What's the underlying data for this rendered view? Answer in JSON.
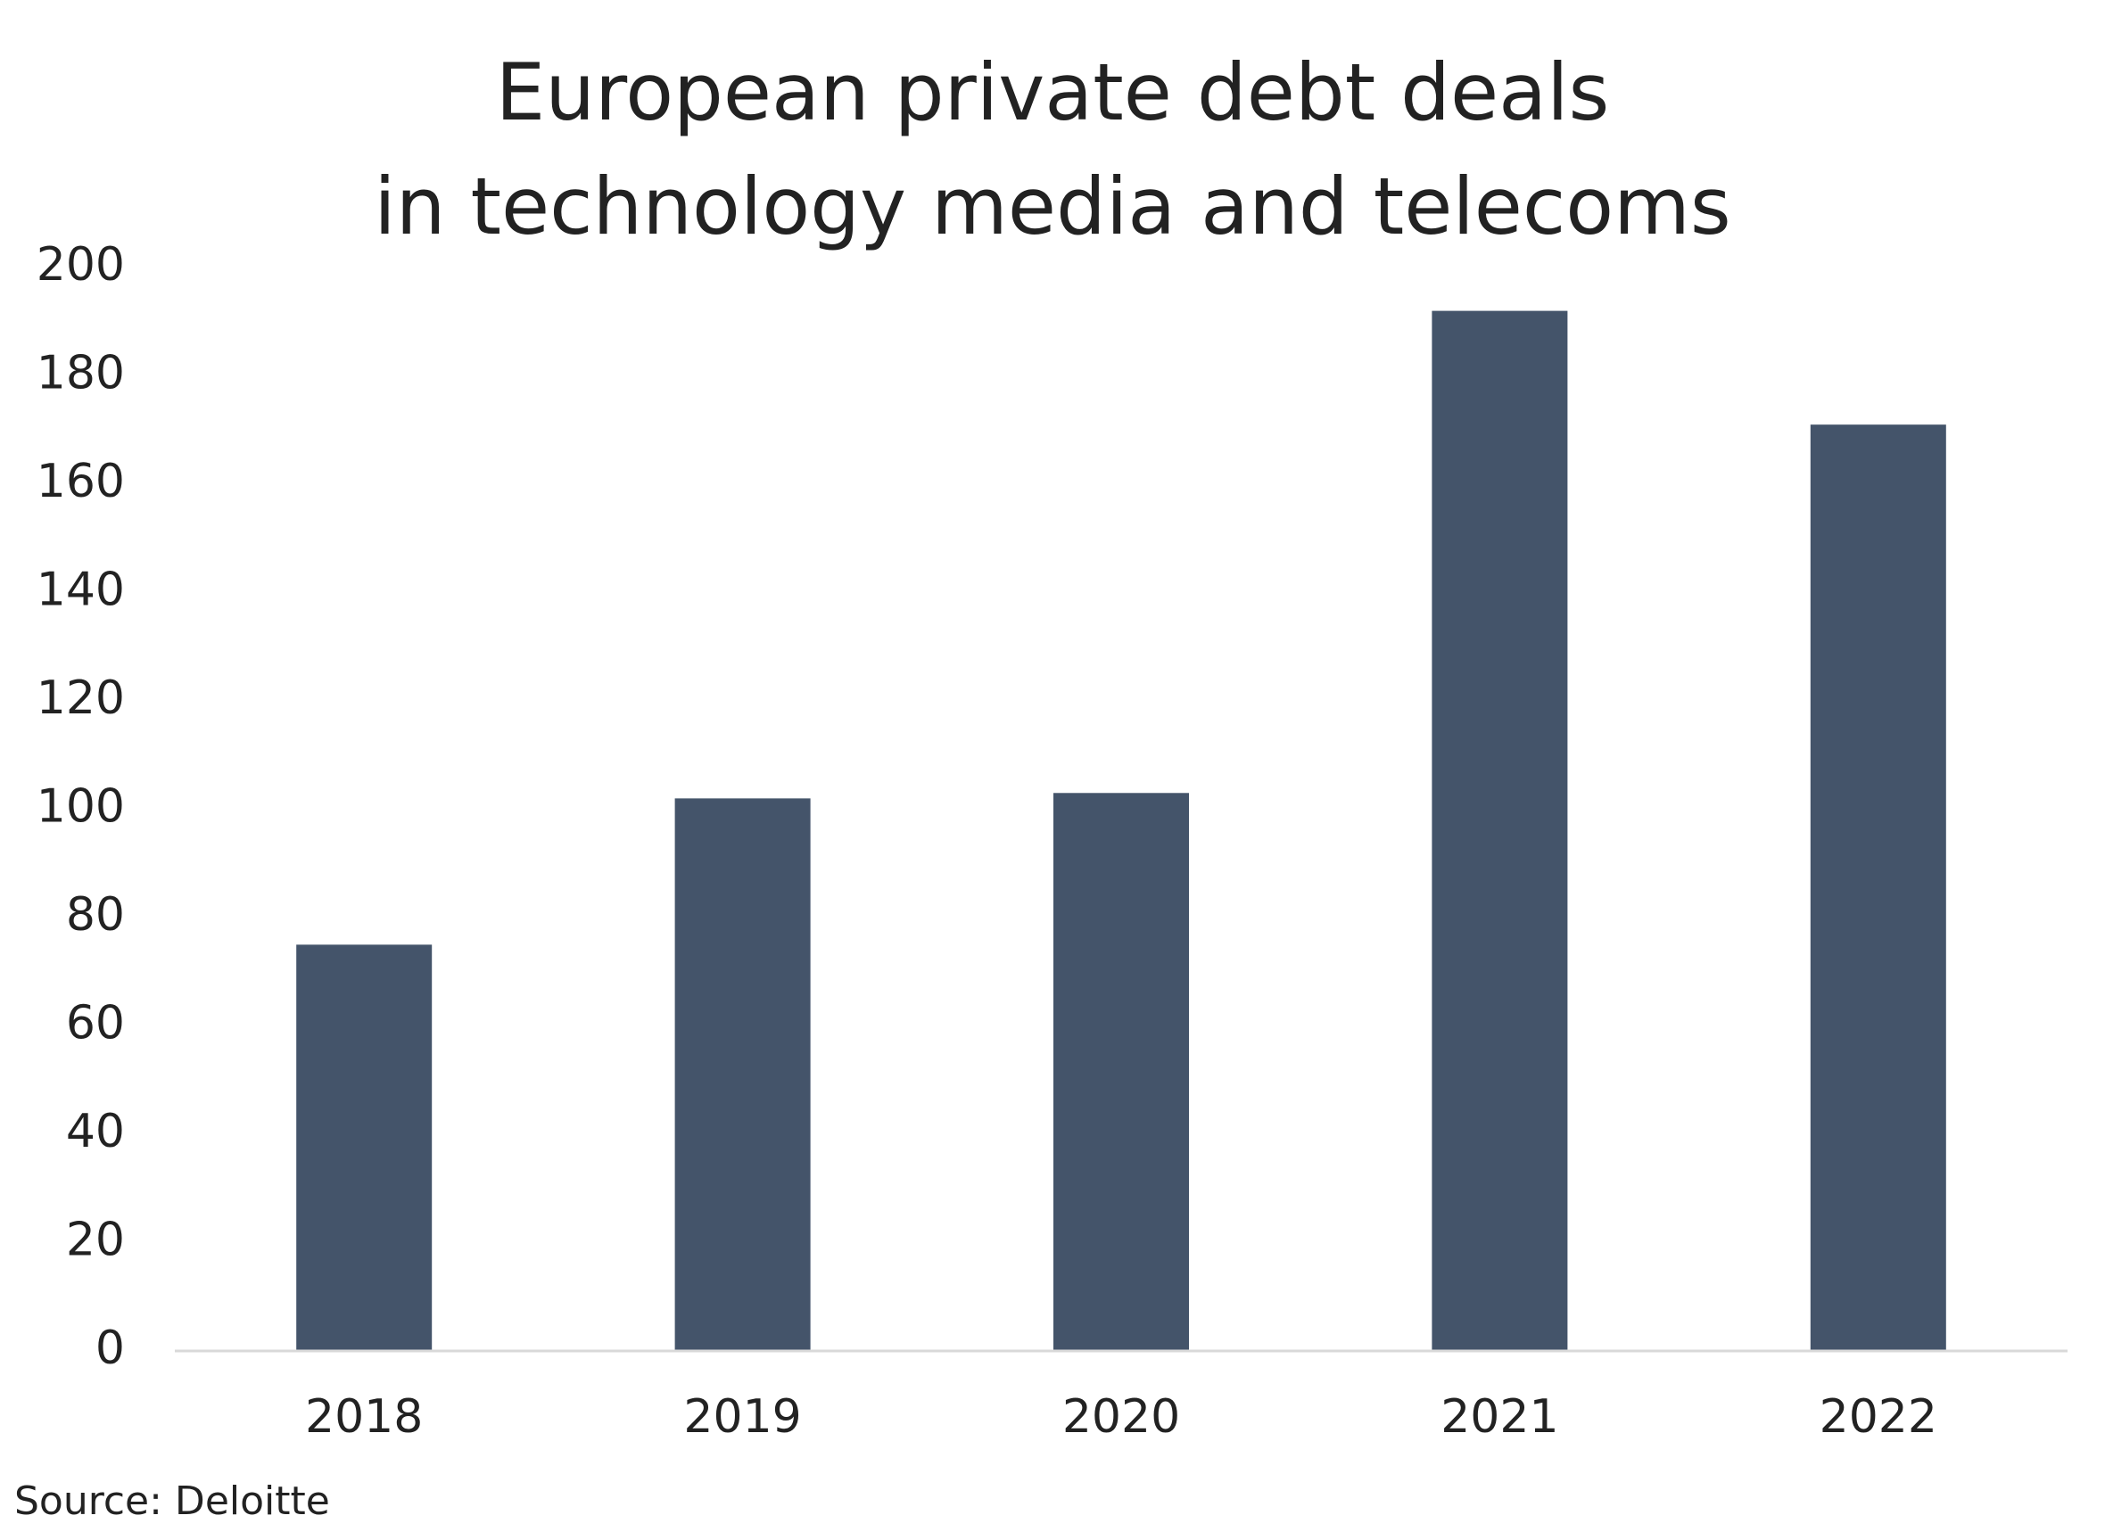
{
  "chart_data": {
    "type": "bar",
    "title_lines": [
      "European private debt deals",
      "in technology media and telecoms"
    ],
    "categories": [
      "2018",
      "2019",
      "2020",
      "2021",
      "2022"
    ],
    "values": [
      75,
      102,
      103,
      192,
      171
    ],
    "xlabel": "",
    "ylabel": "",
    "ylim": [
      0,
      200
    ],
    "yticks": [
      0,
      20,
      40,
      60,
      80,
      100,
      120,
      140,
      160,
      180,
      200
    ],
    "grid": false,
    "legend": "none",
    "bar_color": "#44546a",
    "axis_color": "#d9d9d9"
  },
  "source": "Source: Deloitte"
}
